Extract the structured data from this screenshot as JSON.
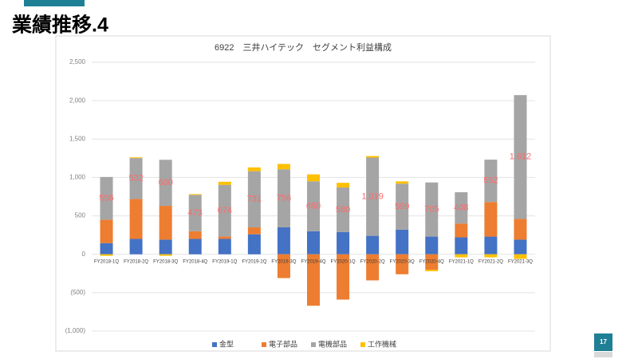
{
  "slide_title": "業績推移.4",
  "page_number": "17",
  "chart_data": {
    "type": "stacked_bar",
    "title": "6922　三井ハイテック　セグメント利益構成",
    "categories": [
      "FY2018-1Q",
      "FY2018-2Q",
      "FY2018-3Q",
      "FY2018-4Q",
      "FY2019-1Q",
      "FY2019-2Q",
      "FY2019-3Q",
      "FY2019-4Q",
      "FY2020-1Q",
      "FY2020-2Q",
      "FY2020-3Q",
      "FY2020-4Q",
      "FY2021-1Q",
      "FY2021-2Q",
      "FY2021-3Q"
    ],
    "series": [
      {
        "name": "金型",
        "color": "#4472c4",
        "values": [
          145,
          200,
          190,
          200,
          200,
          260,
          350,
          300,
          290,
          240,
          320,
          230,
          220,
          230,
          190
        ]
      },
      {
        "name": "電子部品",
        "color": "#ed7d31",
        "values": [
          305,
          520,
          440,
          100,
          30,
          90,
          -310,
          -670,
          -590,
          -340,
          -260,
          -200,
          180,
          450,
          270
        ]
      },
      {
        "name": "電機部品",
        "color": "#a5a5a5",
        "values": [
          556,
          532,
          600,
          473,
          674,
          731,
          756,
          650,
          580,
          1019,
          599,
          705,
          408,
          552,
          1612
        ],
        "value_labels": [
          "556",
          "532",
          "600",
          "473",
          "674",
          "731",
          "756",
          "650",
          "580",
          "1,019",
          "599",
          "705",
          "408",
          "552",
          "1,612"
        ]
      },
      {
        "name": "工作機械",
        "color": "#ffc000",
        "values": [
          -20,
          10,
          -20,
          10,
          40,
          50,
          70,
          90,
          60,
          20,
          30,
          -20,
          -40,
          -40,
          -60
        ]
      }
    ],
    "ylim": [
      -1000,
      2500
    ],
    "yticks": [
      {
        "value": -1000,
        "label": "(1,000)"
      },
      {
        "value": -500,
        "label": "(500)"
      },
      0,
      500,
      {
        "value": 1000,
        "label": "1,000"
      },
      {
        "value": 1500,
        "label": "1,500"
      },
      {
        "value": 2000,
        "label": "2,000"
      },
      {
        "value": 2500,
        "label": "2,500"
      }
    ],
    "grid": true,
    "legend": "bottom"
  }
}
